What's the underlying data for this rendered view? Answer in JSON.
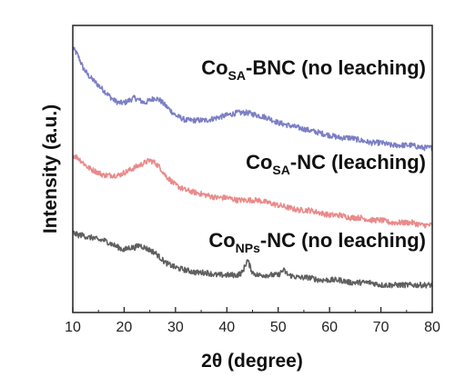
{
  "chart_data": {
    "type": "line",
    "title": "",
    "xlabel": "2θ (degree)",
    "ylabel": "Intensity (a.u.)",
    "xlim": [
      10,
      80
    ],
    "x_ticks": [
      "10",
      "20",
      "30",
      "40",
      "50",
      "60",
      "70",
      "80"
    ],
    "y_ticks_shown": false,
    "grid": false,
    "legend": "none (labels placed above each curve)",
    "series": [
      {
        "label_main": "Co",
        "label_sub": "SA",
        "label_rest": "-BNC (no leaching)",
        "color": "#7b7fc4",
        "points": [
          [
            10,
            0.91
          ],
          [
            11,
            0.88
          ],
          [
            12,
            0.83
          ],
          [
            13,
            0.8
          ],
          [
            14,
            0.78
          ],
          [
            15,
            0.76
          ],
          [
            16,
            0.74
          ],
          [
            17,
            0.72
          ],
          [
            18,
            0.7
          ],
          [
            19,
            0.69
          ],
          [
            20,
            0.69
          ],
          [
            21,
            0.7
          ],
          [
            22,
            0.71
          ],
          [
            23,
            0.7
          ],
          [
            24,
            0.69
          ],
          [
            25,
            0.7
          ],
          [
            26,
            0.71
          ],
          [
            27,
            0.7
          ],
          [
            28,
            0.68
          ],
          [
            29,
            0.66
          ],
          [
            30,
            0.64
          ],
          [
            32,
            0.62
          ],
          [
            34,
            0.62
          ],
          [
            36,
            0.62
          ],
          [
            38,
            0.63
          ],
          [
            40,
            0.64
          ],
          [
            42,
            0.65
          ],
          [
            44,
            0.65
          ],
          [
            46,
            0.64
          ],
          [
            48,
            0.63
          ],
          [
            50,
            0.61
          ],
          [
            52,
            0.6
          ],
          [
            54,
            0.59
          ],
          [
            56,
            0.58
          ],
          [
            58,
            0.57
          ],
          [
            60,
            0.56
          ],
          [
            62,
            0.55
          ],
          [
            64,
            0.55
          ],
          [
            66,
            0.54
          ],
          [
            68,
            0.53
          ],
          [
            70,
            0.53
          ],
          [
            72,
            0.52
          ],
          [
            74,
            0.52
          ],
          [
            76,
            0.52
          ],
          [
            78,
            0.51
          ],
          [
            80,
            0.51
          ]
        ]
      },
      {
        "label_main": "Co",
        "label_sub": "SA",
        "label_rest": "-NC (leaching)",
        "color": "#ea8a8a",
        "points": [
          [
            10,
            0.48
          ],
          [
            11,
            0.47
          ],
          [
            12,
            0.45
          ],
          [
            13,
            0.43
          ],
          [
            14,
            0.42
          ],
          [
            15,
            0.41
          ],
          [
            16,
            0.4
          ],
          [
            17,
            0.4
          ],
          [
            18,
            0.4
          ],
          [
            19,
            0.4
          ],
          [
            20,
            0.41
          ],
          [
            21,
            0.42
          ],
          [
            22,
            0.43
          ],
          [
            23,
            0.44
          ],
          [
            24,
            0.45
          ],
          [
            25,
            0.46
          ],
          [
            26,
            0.45
          ],
          [
            27,
            0.43
          ],
          [
            28,
            0.4
          ],
          [
            29,
            0.38
          ],
          [
            30,
            0.36
          ],
          [
            32,
            0.34
          ],
          [
            34,
            0.33
          ],
          [
            36,
            0.32
          ],
          [
            38,
            0.31
          ],
          [
            40,
            0.31
          ],
          [
            42,
            0.3
          ],
          [
            44,
            0.3
          ],
          [
            46,
            0.3
          ],
          [
            48,
            0.29
          ],
          [
            50,
            0.28
          ],
          [
            52,
            0.27
          ],
          [
            54,
            0.26
          ],
          [
            56,
            0.26
          ],
          [
            58,
            0.25
          ],
          [
            60,
            0.24
          ],
          [
            62,
            0.24
          ],
          [
            64,
            0.23
          ],
          [
            66,
            0.23
          ],
          [
            68,
            0.22
          ],
          [
            70,
            0.22
          ],
          [
            72,
            0.21
          ],
          [
            74,
            0.21
          ],
          [
            76,
            0.21
          ],
          [
            78,
            0.2
          ],
          [
            80,
            0.2
          ]
        ]
      },
      {
        "label_main": "Co",
        "label_sub": "NPs",
        "label_rest": "-NC (no leaching)",
        "color": "#5f5f5f",
        "points": [
          [
            10,
            0.17
          ],
          [
            11,
            0.16
          ],
          [
            12,
            0.16
          ],
          [
            13,
            0.15
          ],
          [
            14,
            0.15
          ],
          [
            15,
            0.14
          ],
          [
            16,
            0.14
          ],
          [
            17,
            0.13
          ],
          [
            18,
            0.12
          ],
          [
            19,
            0.11
          ],
          [
            20,
            0.1
          ],
          [
            21,
            0.11
          ],
          [
            22,
            0.11
          ],
          [
            23,
            0.12
          ],
          [
            24,
            0.11
          ],
          [
            25,
            0.1
          ],
          [
            26,
            0.09
          ],
          [
            27,
            0.07
          ],
          [
            28,
            0.05
          ],
          [
            29,
            0.04
          ],
          [
            30,
            0.03
          ],
          [
            32,
            0.02
          ],
          [
            34,
            0.01
          ],
          [
            36,
            0.01
          ],
          [
            38,
            0.0
          ],
          [
            40,
            0.0
          ],
          [
            42,
            0.0
          ],
          [
            43,
            0.01
          ],
          [
            44,
            0.06
          ],
          [
            45,
            0.01
          ],
          [
            46,
            0.0
          ],
          [
            48,
            0.0
          ],
          [
            50,
            0.0
          ],
          [
            51,
            0.02
          ],
          [
            52,
            0.0
          ],
          [
            54,
            -0.01
          ],
          [
            56,
            -0.01
          ],
          [
            58,
            -0.02
          ],
          [
            60,
            -0.02
          ],
          [
            62,
            -0.02
          ],
          [
            64,
            -0.03
          ],
          [
            66,
            -0.03
          ],
          [
            68,
            -0.03
          ],
          [
            70,
            -0.04
          ],
          [
            72,
            -0.04
          ],
          [
            74,
            -0.04
          ],
          [
            76,
            -0.04
          ],
          [
            78,
            -0.04
          ],
          [
            80,
            -0.04
          ]
        ]
      }
    ]
  }
}
